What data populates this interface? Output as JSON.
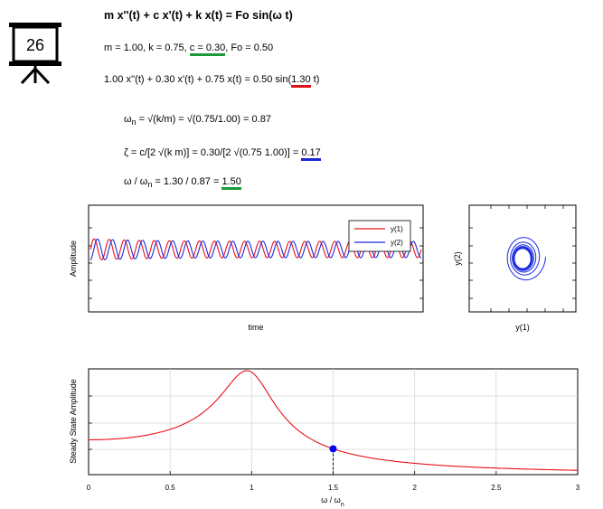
{
  "slide_number": "26",
  "equations": {
    "main": "m x''(t) + c x'(t) + k x(t) = Fo sin(ω t)",
    "params_prefix": "m = 1.00, k = 0.75, ",
    "params_c": "c = 0.30",
    "params_suffix": ", Fo = 0.50",
    "numeric_prefix": "1.00 x''(t) + 0.30 x'(t) + 0.75 x(t) = 0.50 sin(",
    "numeric_omega": "1.30",
    "numeric_suffix": " t)",
    "omega_n_lhs": "ω",
    "omega_n_sub": "n",
    "omega_n_rhs": " = √(k/m) = √(0.75/1.00) = 0.87",
    "zeta_prefix": "ζ = c/[2 √(k m)] = 0.30/[2 √(0.75 1.00)] = ",
    "zeta_value": "0.17",
    "ratio_lhs": "ω / ω",
    "ratio_sub": "n",
    "ratio_mid": " = 1.30 / 0.87 = ",
    "ratio_value": "1.50"
  },
  "colors": {
    "series1": "#e8101a",
    "series2": "#1a2ae0",
    "underline_green": "#1a9a3a",
    "marker": "#0000ee"
  },
  "chart_data": [
    {
      "type": "line",
      "id": "time-series",
      "xlabel": "time",
      "ylabel": "Amplitude",
      "legend": {
        "placement": "top-right",
        "entries": [
          "y(1)",
          "y(2)"
        ]
      },
      "series": [
        {
          "name": "y(1)",
          "omega": 1.3,
          "cycles": 22
        },
        {
          "name": "y(2)",
          "omega": 1.3,
          "cycles": 22
        }
      ],
      "grid": false
    },
    {
      "type": "line",
      "id": "phase-portrait",
      "xlabel": "y(1)",
      "ylabel": "y(2)",
      "grid": false
    },
    {
      "type": "line",
      "id": "frequency-response",
      "xlabel": "ω / ω",
      "xlabel_sub": "n",
      "ylabel": "Steady State Amplitude",
      "xlim": [
        0,
        3
      ],
      "x_ticks": [
        "0",
        "0.5",
        "1",
        "1.5",
        "2",
        "2.5",
        "3"
      ],
      "zeta": 0.17,
      "peak_x": 0.97,
      "marker": {
        "x": 1.5
      },
      "grid": true
    }
  ]
}
